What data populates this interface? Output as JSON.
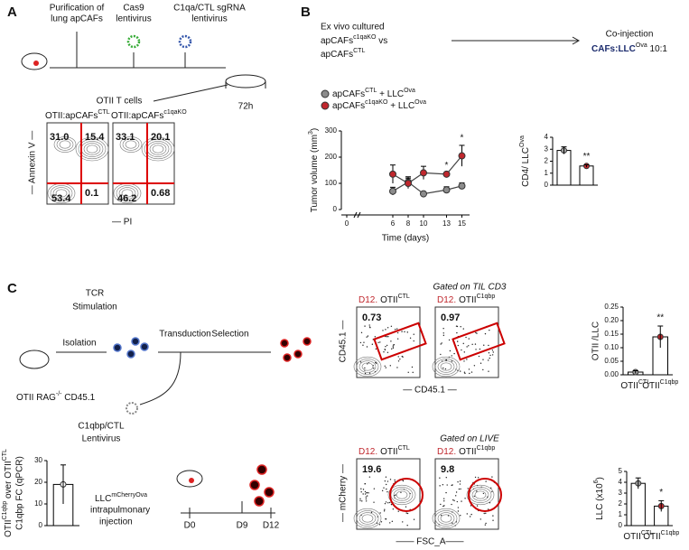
{
  "panel_labels": [
    "A",
    "B",
    "C"
  ],
  "panel_a": {
    "steps": [
      "Purification of",
      "lung apCAFs",
      "Cas9",
      "lentivirus",
      "C1qa/CTL sgRNA",
      "lentivirus",
      "OTII T cells",
      "72h"
    ],
    "plots": [
      {
        "title": [
          "OTII:apCAFs",
          "CTL"
        ],
        "quadrants": [
          "31.0",
          "15.4",
          "53.4",
          "0.1"
        ]
      },
      {
        "title": [
          "OTII:apCAFs",
          "c1qaKO"
        ],
        "quadrants": [
          "33.1",
          "20.1",
          "46.2",
          "0.68"
        ]
      }
    ],
    "y_label": "— Annexin V —",
    "x_label": "— PI"
  },
  "panel_b": {
    "intro": [
      "Ex vivo cultured",
      [
        "apCAFs",
        "c1qaKO",
        " vs"
      ],
      [
        "apCAFs",
        "CTL"
      ]
    ],
    "co_injection": "Co-injection",
    "ratio": [
      "CAFs:LLC",
      "Ova",
      " 10:1"
    ]
  },
  "panel_c": {
    "steps": [
      "TCR",
      "Stimulation",
      "Isolation",
      "Transduction",
      "Selection"
    ],
    "mouse": [
      "OTII RAG",
      "-/-",
      " CD45.1"
    ],
    "virus": [
      "C1qbp/CTL",
      "Lentivirus"
    ],
    "gates": [
      {
        "title": "Gated on TIL CD3",
        "plots": [
          {
            "prefix": "D12.",
            "label": [
              "OTII",
              "CTL"
            ],
            "value": "0.73"
          },
          {
            "prefix": "D12.",
            "label": [
              "OTII",
              "C1qbp"
            ],
            "value": "0.97"
          }
        ],
        "y_label": "CD45.1 —",
        "x_label": "— CD45.1 —"
      },
      {
        "title": "Gated on LIVE",
        "plots": [
          {
            "prefix": "D12.",
            "label": [
              "OTII",
              "CTL"
            ],
            "value": "19.6"
          },
          {
            "prefix": "D12.",
            "label": [
              "OTII",
              "C1qbp"
            ],
            "value": "9.8"
          }
        ],
        "y_label": "— mCherry —",
        "x_label": "—— FSC_A——"
      }
    ],
    "timeline": {
      "model": [
        "LLC",
        "mCherryOva"
      ],
      "route": "intrapulmonary",
      "method": "injection",
      "days": [
        "D0",
        "D9",
        "D12"
      ]
    }
  },
  "chart_data": [
    {
      "type": "line",
      "y_label": [
        [
          "Tumor volume (mm",
          "3",
          ")"
        ]
      ],
      "x_label": "Time (days)",
      "x": [
        6,
        8,
        10,
        13,
        15
      ],
      "xlim": [
        0,
        16
      ],
      "xticks": [
        0,
        6,
        8,
        10,
        13,
        15
      ],
      "ylim": [
        0,
        300
      ],
      "yticks": [
        0,
        100,
        200,
        300
      ],
      "series": [
        {
          "name": [
            "apCAFs",
            "CTL",
            " + LLC",
            "Ova"
          ],
          "color": "#8c8c8c",
          "values": [
            70,
            105,
            60,
            75,
            90
          ],
          "errors": [
            15,
            20,
            5,
            12,
            12
          ]
        },
        {
          "name": [
            "apCAFs",
            "c1qaKO",
            " + LLC",
            "Ova"
          ],
          "color": "#c0272d",
          "values": [
            135,
            100,
            140,
            135,
            205
          ],
          "errors": [
            35,
            20,
            25,
            5,
            40
          ]
        }
      ],
      "annotations": [
        {
          "text": "*",
          "x": 13
        },
        {
          "text": "*",
          "x": 15
        }
      ]
    },
    {
      "type": "bar",
      "y_label": [
        [
          "CD4/ LLC",
          "Ova"
        ]
      ],
      "categories": [
        null,
        null
      ],
      "values": [
        2.9,
        1.6
      ],
      "errors": [
        0.3,
        0.1
      ],
      "colors": [
        "#a6a6a6",
        "#c0272d"
      ],
      "ylim": [
        0,
        4
      ],
      "yticks": [
        0,
        1,
        2,
        3,
        4
      ],
      "annotations": [
        {
          "text": "**",
          "index": 1
        }
      ]
    },
    {
      "type": "bar",
      "y_label": [
        "OTII /LLC"
      ],
      "categories": [
        [
          "OTII",
          "CTL"
        ],
        [
          "OTII",
          "C1qbp"
        ]
      ],
      "values": [
        0.01,
        0.14
      ],
      "errors": [
        0.005,
        0.04
      ],
      "colors": [
        "#a6a6a6",
        "#c0272d"
      ],
      "ylim": [
        0,
        0.25
      ],
      "yticks": [
        {
          "value": 0,
          "label": "0.00"
        },
        {
          "value": 0.05,
          "label": "0.05"
        },
        {
          "value": 0.1,
          "label": "0.10"
        },
        {
          "value": 0.15,
          "label": "0.15"
        },
        {
          "value": 0.2,
          "label": "0.20"
        },
        {
          "value": 0.25,
          "label": "0.25"
        }
      ],
      "annotations": [
        {
          "text": "**",
          "index": 1
        }
      ]
    },
    {
      "type": "bar",
      "y_label": [
        [
          "LLC  (x10",
          "6",
          ")"
        ]
      ],
      "categories": [
        [
          "OTII",
          "CTL"
        ],
        [
          "OTII",
          "C1qbp"
        ]
      ],
      "values": [
        3.9,
        1.8
      ],
      "errors": [
        0.5,
        0.5
      ],
      "colors": [
        "#a6a6a6",
        "#c0272d"
      ],
      "ylim": [
        0,
        5
      ],
      "yticks": [
        0,
        1,
        2,
        3,
        4,
        5
      ],
      "annotations": [
        {
          "text": "*",
          "index": 1
        }
      ]
    },
    {
      "type": "bar",
      "y_label": [
        [
          "OTII",
          "C1qbp",
          " over OTII",
          "CTL"
        ],
        "C1qbp FC (qPCR)"
      ],
      "categories": [
        null
      ],
      "values": [
        19
      ],
      "errors": [
        9
      ],
      "colors": [
        "#ffffff"
      ],
      "ylim": [
        0,
        30
      ],
      "yticks": [
        0,
        10,
        20,
        30
      ],
      "annotations": []
    }
  ]
}
